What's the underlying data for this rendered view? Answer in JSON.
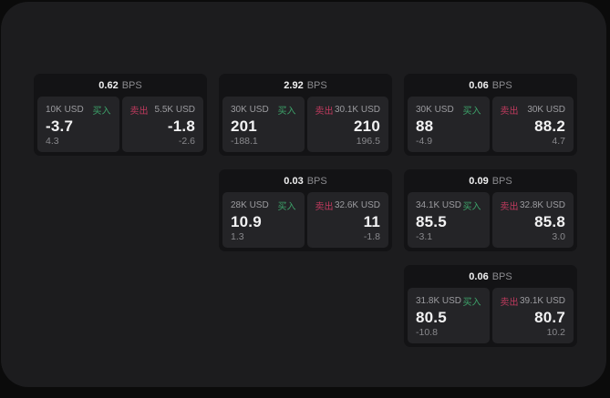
{
  "labels": {
    "bps_unit": "BPS",
    "buy": "买入",
    "sell": "卖出"
  },
  "colors": {
    "page_bg": "#0b0b0b",
    "panel_bg": "#1c1c1e",
    "card_bg": "#131315",
    "tile_bg": "#242427",
    "text_primary": "#f2f2f3",
    "text_secondary": "#9c9ca0",
    "text_tertiary": "#89898d",
    "buy_green": "#3da36a",
    "sell_red": "#bf3a5e"
  },
  "cards": [
    {
      "bps": "0.62",
      "buy": {
        "size": "10K USD",
        "price": "-3.7",
        "delta": "4.3"
      },
      "sell": {
        "size": "5.5K USD",
        "price": "-1.8",
        "delta": "-2.6"
      }
    },
    {
      "bps": "2.92",
      "buy": {
        "size": "30K USD",
        "price": "201",
        "delta": "-188.1"
      },
      "sell": {
        "size": "30.1K USD",
        "price": "210",
        "delta": "196.5"
      }
    },
    {
      "bps": "0.06",
      "buy": {
        "size": "30K USD",
        "price": "88",
        "delta": "-4.9"
      },
      "sell": {
        "size": "30K USD",
        "price": "88.2",
        "delta": "4.7"
      }
    },
    {
      "bps": "0.03",
      "buy": {
        "size": "28K USD",
        "price": "10.9",
        "delta": "1.3"
      },
      "sell": {
        "size": "32.6K USD",
        "price": "11",
        "delta": "-1.8"
      }
    },
    {
      "bps": "0.09",
      "buy": {
        "size": "34.1K USD",
        "price": "85.5",
        "delta": "-3.1"
      },
      "sell": {
        "size": "32.8K USD",
        "price": "85.8",
        "delta": "3.0"
      }
    },
    {
      "bps": "0.06",
      "buy": {
        "size": "31.8K USD",
        "price": "80.5",
        "delta": "-10.8"
      },
      "sell": {
        "size": "39.1K USD",
        "price": "80.7",
        "delta": "10.2"
      }
    }
  ]
}
